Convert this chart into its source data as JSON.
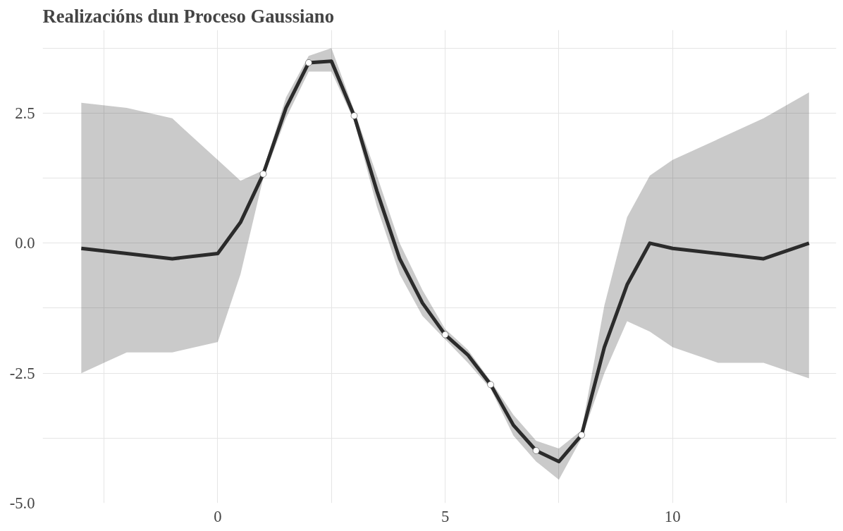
{
  "chart_data": {
    "type": "line",
    "title": "Realizacións dun Proceso Gaussiano",
    "xlim": [
      -3.85,
      13.6
    ],
    "ylim": [
      -5.0,
      4.1
    ],
    "xticks": [
      {
        "value": -2.5,
        "label": null
      },
      0,
      {
        "value": 2.5,
        "label": null
      },
      5,
      {
        "value": 7.5,
        "label": null
      },
      10,
      {
        "value": 12.5,
        "label": null
      }
    ],
    "yticks": [
      "-5.0",
      {
        "value": -3.75,
        "label": null
      },
      {
        "value": -2.5,
        "label": "-2.5"
      },
      {
        "value": -1.25,
        "label": null
      },
      {
        "value": 0,
        "label": "0.0"
      },
      {
        "value": 1.25,
        "label": null
      },
      {
        "value": 2.5,
        "label": "2.5"
      },
      {
        "value": 3.75,
        "label": null
      }
    ],
    "grid": true,
    "series": [
      {
        "color": "#2b2b2b",
        "line_style": "solid",
        "marker": "none",
        "x": [
          -3,
          -2,
          -1,
          0,
          0.5,
          1,
          1.5,
          2,
          2.5,
          3,
          3.5,
          4,
          4.5,
          5,
          5.5,
          6,
          6.5,
          7,
          7.5,
          8,
          8.5,
          9,
          9.5,
          10,
          11,
          12,
          13
        ],
        "values": [
          -0.1,
          -0.2,
          -0.3,
          -0.2,
          0.4,
          1.33,
          2.6,
          3.47,
          3.5,
          2.45,
          1.0,
          -0.3,
          -1.15,
          -1.76,
          -2.15,
          -2.72,
          -3.5,
          -3.99,
          -4.2,
          -3.69,
          -2.0,
          -0.8,
          0.0,
          -0.1,
          -0.2,
          -0.3,
          0.0
        ],
        "lower": [
          -2.5,
          -2.1,
          -2.1,
          -1.9,
          -0.6,
          1.25,
          2.4,
          3.3,
          3.3,
          2.35,
          0.7,
          -0.6,
          -1.4,
          -1.85,
          -2.3,
          -2.8,
          -3.7,
          -4.2,
          -4.55,
          -3.75,
          -2.5,
          -1.5,
          -1.7,
          -2.0,
          -2.3,
          -2.3,
          -2.6
        ],
        "upper": [
          2.7,
          2.6,
          2.4,
          1.6,
          1.2,
          1.4,
          2.8,
          3.6,
          3.75,
          2.55,
          1.3,
          0.0,
          -0.9,
          -1.65,
          -2.05,
          -2.65,
          -3.3,
          -3.8,
          -3.95,
          -3.6,
          -1.2,
          0.5,
          1.3,
          1.6,
          2.0,
          2.4,
          2.9
        ]
      },
      {
        "type": "scatter",
        "color": "#ffffff",
        "marker": "circle",
        "x": [
          1,
          2,
          3,
          5,
          6,
          7,
          8
        ],
        "values": [
          1.33,
          3.47,
          2.45,
          -1.76,
          -2.72,
          -3.99,
          -3.69
        ]
      }
    ]
  }
}
